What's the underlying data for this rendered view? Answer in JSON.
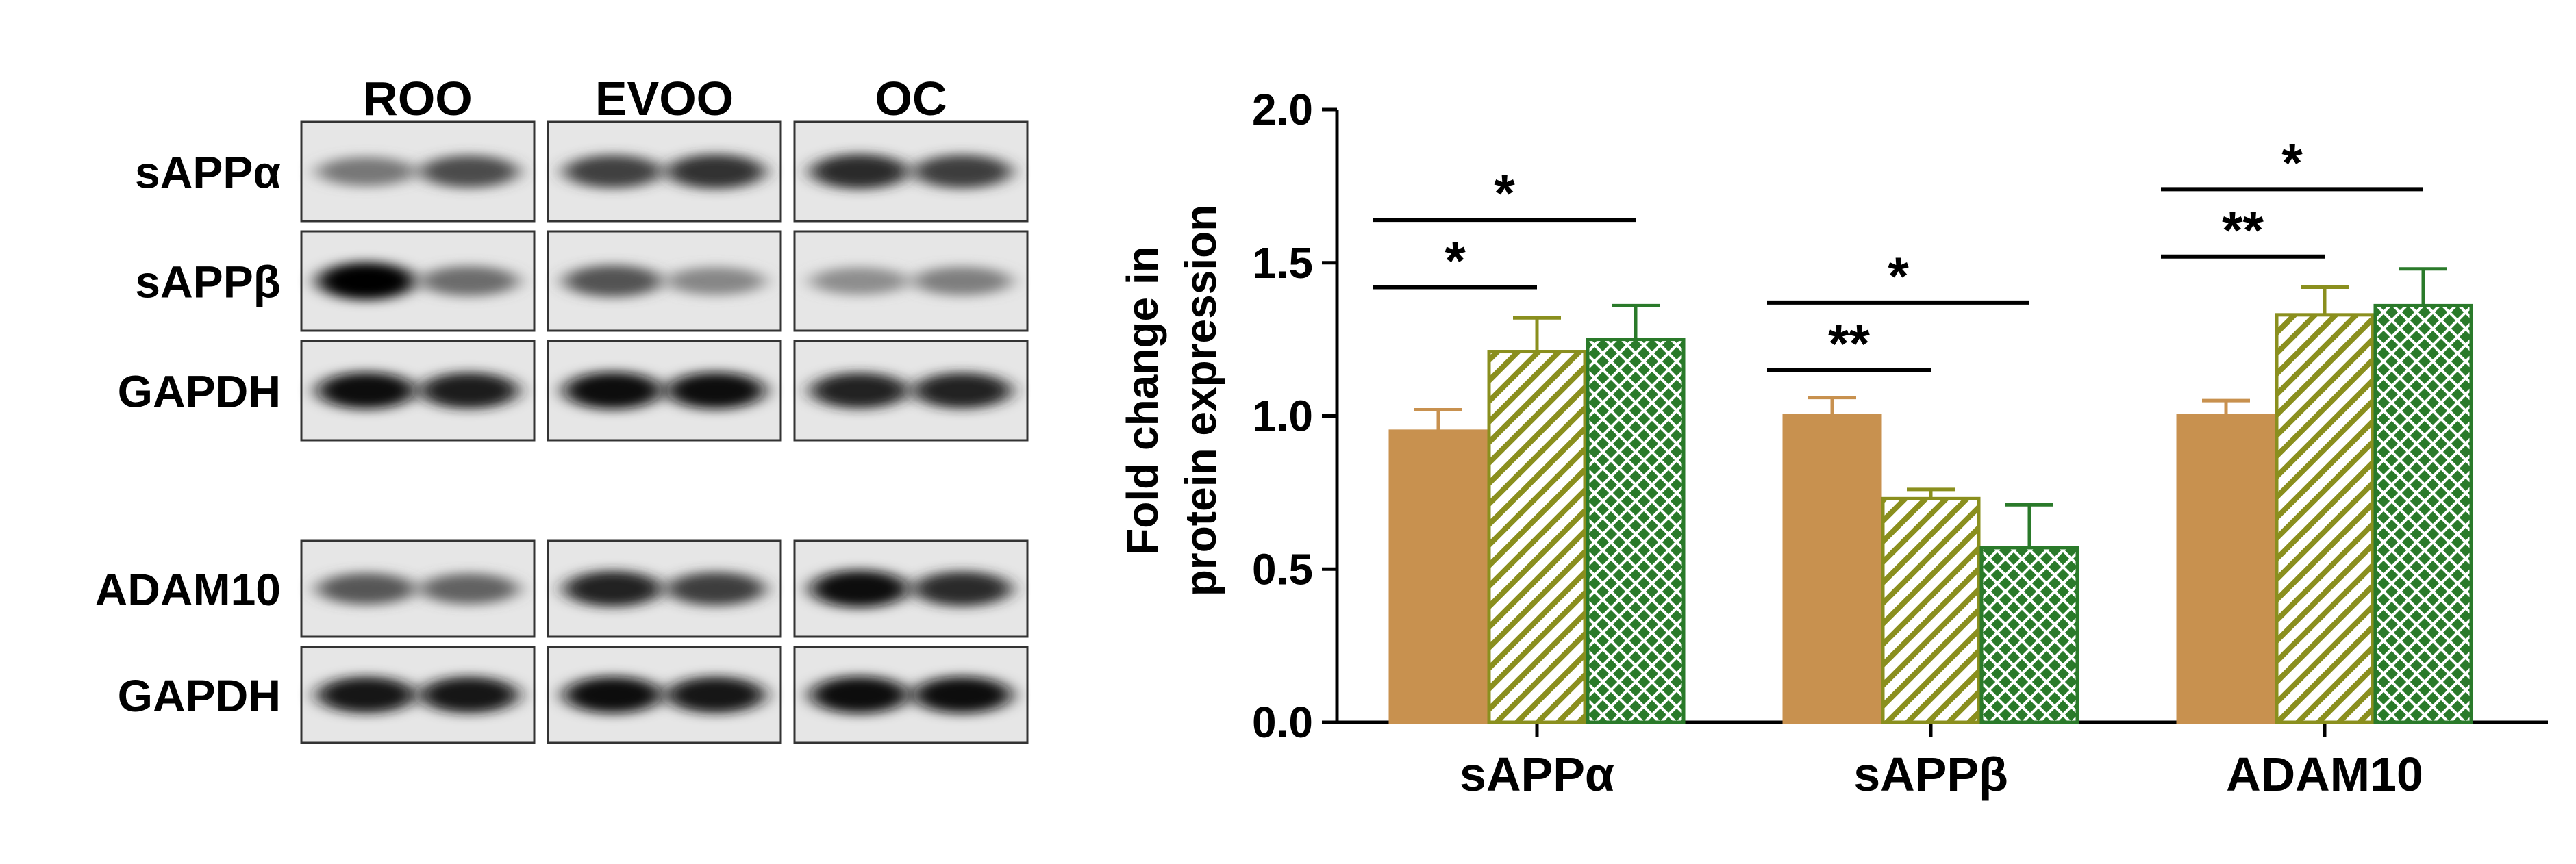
{
  "blot": {
    "columns": [
      "ROO",
      "EVOO",
      "OC"
    ],
    "group1": {
      "rows": [
        {
          "label": "sAPPα",
          "bands": [
            [
              0.45,
              0.65
            ],
            [
              0.7,
              0.78
            ],
            [
              0.8,
              0.72
            ]
          ]
        },
        {
          "label": "sAPPβ",
          "bands": [
            [
              0.98,
              0.5
            ],
            [
              0.62,
              0.38
            ],
            [
              0.35,
              0.42
            ]
          ]
        },
        {
          "label": "GAPDH",
          "bands": [
            [
              0.92,
              0.88
            ],
            [
              0.95,
              0.92
            ],
            [
              0.85,
              0.85
            ]
          ]
        }
      ]
    },
    "group2": {
      "rows": [
        {
          "label": "ADAM10",
          "bands": [
            [
              0.6,
              0.55
            ],
            [
              0.85,
              0.72
            ],
            [
              0.95,
              0.8
            ]
          ]
        },
        {
          "label": "GAPDH",
          "bands": [
            [
              0.9,
              0.9
            ],
            [
              0.92,
              0.9
            ],
            [
              0.95,
              0.92
            ]
          ]
        }
      ]
    }
  },
  "chart_data": {
    "type": "bar",
    "categories": [
      "sAPPα",
      "sAPPβ",
      "ADAM10"
    ],
    "ylabel_line1": "Fold change in",
    "ylabel_line2": "protein expression",
    "ylim": [
      0,
      2.0
    ],
    "yticks": [
      "0.0",
      "0.5",
      "1.0",
      "1.5",
      "2.0"
    ],
    "grid": false,
    "legend": "none",
    "series": [
      {
        "values": [
          0.95,
          1.0,
          1.0
        ],
        "errors": [
          0.07,
          0.06,
          0.05
        ],
        "color": "#c8914f",
        "pattern": "solid"
      },
      {
        "values": [
          1.21,
          0.73,
          1.33
        ],
        "errors": [
          0.11,
          0.03,
          0.09
        ],
        "color": "#8a8f1e",
        "pattern": "diagonal-hatch"
      },
      {
        "values": [
          1.25,
          0.57,
          1.36
        ],
        "errors": [
          0.11,
          0.14,
          0.12
        ],
        "color": "#2a7a2a",
        "pattern": "crosshatch"
      }
    ],
    "significance": [
      {
        "category": 0,
        "from_series": 0,
        "to_series": 1,
        "y": 1.42,
        "label": "*"
      },
      {
        "category": 0,
        "from_series": 0,
        "to_series": 2,
        "y": 1.64,
        "label": "*"
      },
      {
        "category": 1,
        "from_series": 0,
        "to_series": 1,
        "y": 1.15,
        "label": "**"
      },
      {
        "category": 1,
        "from_series": 0,
        "to_series": 2,
        "y": 1.37,
        "label": "*"
      },
      {
        "category": 2,
        "from_series": 0,
        "to_series": 1,
        "y": 1.52,
        "label": "**"
      },
      {
        "category": 2,
        "from_series": 0,
        "to_series": 2,
        "y": 1.74,
        "label": "*"
      }
    ]
  }
}
